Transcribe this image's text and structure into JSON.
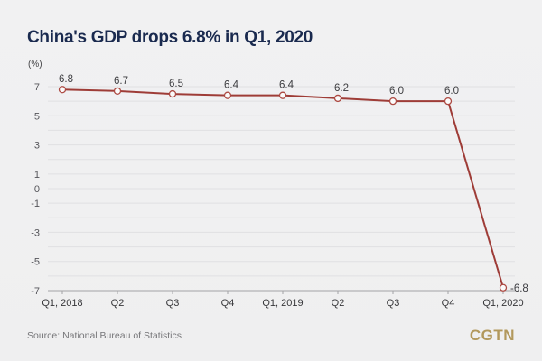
{
  "chart_data": {
    "type": "line",
    "title": "China's GDP drops 6.8% in Q1, 2020",
    "ylabel": "(%)",
    "xlabel": "",
    "categories": [
      "Q1, 2018",
      "Q2",
      "Q3",
      "Q4",
      "Q1, 2019",
      "Q2",
      "Q3",
      "Q4",
      "Q1, 2020"
    ],
    "values": [
      6.8,
      6.7,
      6.5,
      6.4,
      6.4,
      6.2,
      6.0,
      6.0,
      -6.8
    ],
    "value_labels": [
      "6.8",
      "6.7",
      "6.5",
      "6.4",
      "6.4",
      "6.2",
      "6.0",
      "6.0",
      "-6.8"
    ],
    "ylim": [
      -7,
      7
    ],
    "grid_step": 1,
    "grid": "horizontal",
    "legend": "none",
    "ytick_labels": [
      7,
      5,
      3,
      1,
      0,
      -1,
      -3,
      -5,
      -7
    ],
    "colors": {
      "line": "#9e3c37",
      "marker_stroke": "#ad4a43",
      "marker_fill": "#fbfbfb",
      "grid": "#e0e0e2",
      "axis": "#a3a3a6",
      "ytick_label": "#55555a",
      "xtick_label": "#37373a",
      "data_label": "#3c3c40"
    }
  },
  "page": {
    "background": "#f0f0f1",
    "title_color": "#1a2a4f",
    "logo_color": "#b2985c"
  },
  "footer": {
    "source": "Source: National Bureau of Statistics",
    "logo": "CGTN"
  }
}
